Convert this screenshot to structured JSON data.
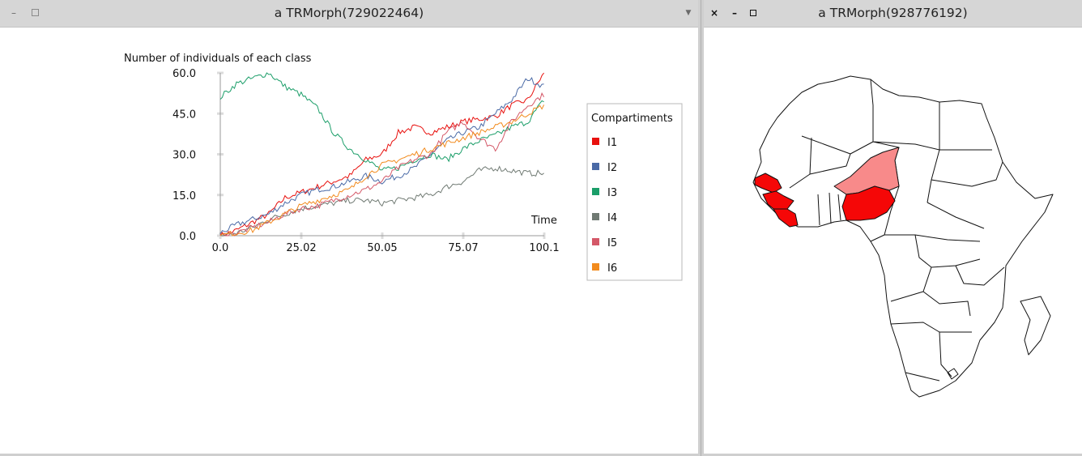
{
  "windows": {
    "left": {
      "title": "a TRMorph(729022464)",
      "controls": [
        "minimize",
        "maximize",
        "menu"
      ]
    },
    "right": {
      "title": "a TRMorph(928776192)",
      "controls": [
        "close",
        "minimize",
        "maximize"
      ]
    }
  },
  "chart_data": {
    "type": "line",
    "title": "Number of individuals of each class",
    "xlabel": "Time",
    "ylabel": "",
    "xlim": [
      0,
      100.1
    ],
    "ylim": [
      0,
      60
    ],
    "x_ticks": [
      "0.0",
      "25.02",
      "50.05",
      "75.07",
      "100.1"
    ],
    "y_ticks": [
      "0.0",
      "15.0",
      "30.0",
      "45.0",
      "60.0"
    ],
    "legend": {
      "title": "Compartiments",
      "placement": "right"
    },
    "series": [
      {
        "name": "I1",
        "color": "#e8110e",
        "x": [
          0,
          5,
          10,
          15,
          20,
          25,
          30,
          35,
          40,
          45,
          50,
          55,
          60,
          65,
          70,
          75,
          80,
          85,
          90,
          95,
          100
        ],
        "y": [
          0,
          2,
          5,
          8,
          14,
          16,
          18,
          20,
          22,
          28,
          30,
          38,
          40,
          38,
          40,
          42,
          43,
          44,
          48,
          50,
          60
        ]
      },
      {
        "name": "I2",
        "color": "#4a6aa6",
        "x": [
          0,
          5,
          10,
          15,
          20,
          25,
          30,
          35,
          40,
          45,
          50,
          55,
          60,
          65,
          70,
          75,
          80,
          85,
          90,
          95,
          100
        ],
        "y": [
          1,
          4,
          6,
          8,
          12,
          15,
          17,
          18,
          20,
          22,
          20,
          22,
          25,
          30,
          35,
          38,
          40,
          45,
          50,
          58,
          55
        ]
      },
      {
        "name": "I3",
        "color": "#1b9e69",
        "x": [
          0,
          5,
          10,
          15,
          20,
          25,
          30,
          35,
          40,
          45,
          50,
          55,
          60,
          65,
          70,
          75,
          80,
          85,
          90,
          95,
          100
        ],
        "y": [
          51,
          56,
          58,
          60,
          55,
          52,
          47,
          38,
          32,
          28,
          24,
          25,
          28,
          30,
          28,
          32,
          35,
          37,
          40,
          42,
          50
        ]
      },
      {
        "name": "I4",
        "color": "#707a73",
        "x": [
          0,
          5,
          10,
          15,
          20,
          25,
          30,
          35,
          40,
          45,
          50,
          55,
          60,
          65,
          70,
          75,
          80,
          85,
          90,
          95,
          100
        ],
        "y": [
          0,
          1,
          3,
          6,
          8,
          10,
          11,
          12,
          13,
          13,
          12,
          13,
          14,
          15,
          18,
          20,
          24,
          25,
          24,
          23,
          23
        ]
      },
      {
        "name": "I5",
        "color": "#d45868",
        "x": [
          0,
          5,
          10,
          15,
          20,
          25,
          30,
          35,
          40,
          45,
          50,
          55,
          60,
          65,
          70,
          75,
          80,
          85,
          90,
          95,
          100
        ],
        "y": [
          0,
          1,
          3,
          5,
          8,
          10,
          11,
          13,
          15,
          17,
          20,
          25,
          28,
          30,
          38,
          42,
          36,
          32,
          42,
          48,
          52
        ]
      },
      {
        "name": "I6",
        "color": "#f28b1e",
        "x": [
          0,
          5,
          10,
          15,
          20,
          25,
          30,
          35,
          40,
          45,
          50,
          55,
          60,
          65,
          70,
          75,
          80,
          85,
          90,
          95,
          100
        ],
        "y": [
          0,
          1,
          2,
          5,
          8,
          11,
          13,
          15,
          17,
          22,
          26,
          28,
          30,
          32,
          34,
          36,
          38,
          40,
          42,
          45,
          48
        ]
      }
    ]
  },
  "map": {
    "colors": {
      "high": "#f50707",
      "medium": "#f88a8a",
      "none": "#ffffff",
      "border": "#111111"
    }
  }
}
